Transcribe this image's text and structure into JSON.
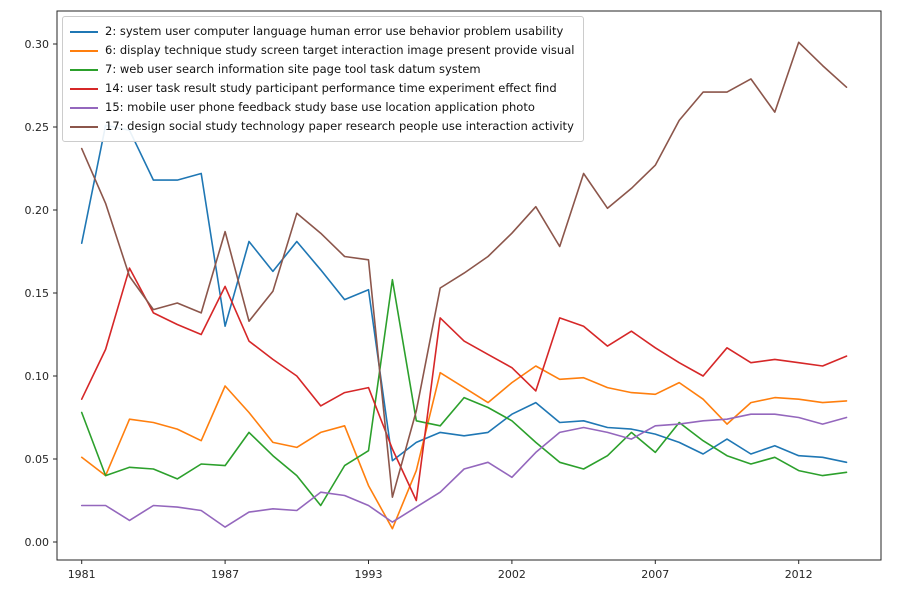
{
  "figure": {
    "background": "#ffffff",
    "axes_edge_color": "#262626",
    "tick_color": "#262626"
  },
  "chart_data": {
    "type": "line",
    "title": "",
    "xlabel": "",
    "ylabel": "",
    "grid": false,
    "legend_position": "upper left",
    "n_points": 33,
    "x_tick_positions": [
      0,
      6,
      12,
      18,
      24,
      30
    ],
    "x_tick_labels": [
      "1981",
      "1987",
      "1993",
      "2002",
      "2007",
      "2012"
    ],
    "y_ticks": [
      0.0,
      0.05,
      0.1,
      0.15,
      0.2,
      0.25,
      0.3
    ],
    "y_tick_labels": [
      "0.00",
      "0.05",
      "0.10",
      "0.15",
      "0.20",
      "0.25",
      "0.30"
    ],
    "ylim": [
      -0.011,
      0.32
    ],
    "series": [
      {
        "name": "topic-2",
        "label": "2: system user computer language human error use behavior problem usability",
        "color": "#1f77b4",
        "values": [
          0.18,
          0.251,
          0.248,
          0.218,
          0.218,
          0.222,
          0.13,
          0.181,
          0.163,
          0.181,
          0.164,
          0.146,
          0.152,
          0.049,
          0.06,
          0.066,
          0.064,
          0.066,
          0.077,
          0.084,
          0.072,
          0.073,
          0.069,
          0.068,
          0.065,
          0.06,
          0.053,
          0.062,
          0.053,
          0.058,
          0.052,
          0.051,
          0.048
        ]
      },
      {
        "name": "topic-6",
        "label": "6: display technique study screen target interaction image present provide visual",
        "color": "#ff7f0e",
        "values": [
          0.051,
          0.04,
          0.074,
          0.072,
          0.068,
          0.061,
          0.094,
          0.078,
          0.06,
          0.057,
          0.066,
          0.07,
          0.034,
          0.008,
          0.043,
          0.102,
          0.093,
          0.084,
          0.096,
          0.106,
          0.098,
          0.099,
          0.093,
          0.09,
          0.089,
          0.096,
          0.086,
          0.071,
          0.084,
          0.087,
          0.086,
          0.084,
          0.085
        ]
      },
      {
        "name": "topic-7",
        "label": "7: web user search information site page tool task datum system",
        "color": "#2ca02c",
        "values": [
          0.078,
          0.04,
          0.045,
          0.044,
          0.038,
          0.047,
          0.046,
          0.066,
          0.052,
          0.04,
          0.022,
          0.046,
          0.055,
          0.158,
          0.073,
          0.07,
          0.087,
          0.081,
          0.073,
          0.06,
          0.048,
          0.044,
          0.052,
          0.066,
          0.054,
          0.072,
          0.061,
          0.052,
          0.047,
          0.051,
          0.043,
          0.04,
          0.042
        ]
      },
      {
        "name": "topic-14",
        "label": "14: user task result study participant performance time experiment effect find",
        "color": "#d62728",
        "values": [
          0.086,
          0.116,
          0.165,
          0.138,
          0.131,
          0.125,
          0.154,
          0.121,
          0.11,
          0.1,
          0.082,
          0.09,
          0.093,
          0.056,
          0.025,
          0.135,
          0.121,
          0.113,
          0.105,
          0.091,
          0.135,
          0.13,
          0.118,
          0.127,
          0.117,
          0.108,
          0.1,
          0.117,
          0.108,
          0.11,
          0.108,
          0.106,
          0.112
        ]
      },
      {
        "name": "topic-15",
        "label": "15: mobile user phone feedback study base use location application photo",
        "color": "#9467bd",
        "values": [
          0.022,
          0.022,
          0.013,
          0.022,
          0.021,
          0.019,
          0.009,
          0.018,
          0.02,
          0.019,
          0.03,
          0.028,
          0.022,
          0.012,
          0.021,
          0.03,
          0.044,
          0.048,
          0.039,
          0.054,
          0.066,
          0.069,
          0.066,
          0.062,
          0.07,
          0.071,
          0.073,
          0.074,
          0.077,
          0.077,
          0.075,
          0.071,
          0.075
        ]
      },
      {
        "name": "topic-17",
        "label": "17: design social study technology paper research people use interaction activity",
        "color": "#8c564b",
        "values": [
          0.237,
          0.204,
          0.16,
          0.14,
          0.144,
          0.138,
          0.187,
          0.133,
          0.151,
          0.198,
          0.186,
          0.172,
          0.17,
          0.027,
          0.079,
          0.153,
          0.162,
          0.172,
          0.186,
          0.202,
          0.178,
          0.222,
          0.201,
          0.213,
          0.227,
          0.254,
          0.271,
          0.271,
          0.279,
          0.259,
          0.301,
          0.287,
          0.274
        ]
      }
    ]
  }
}
